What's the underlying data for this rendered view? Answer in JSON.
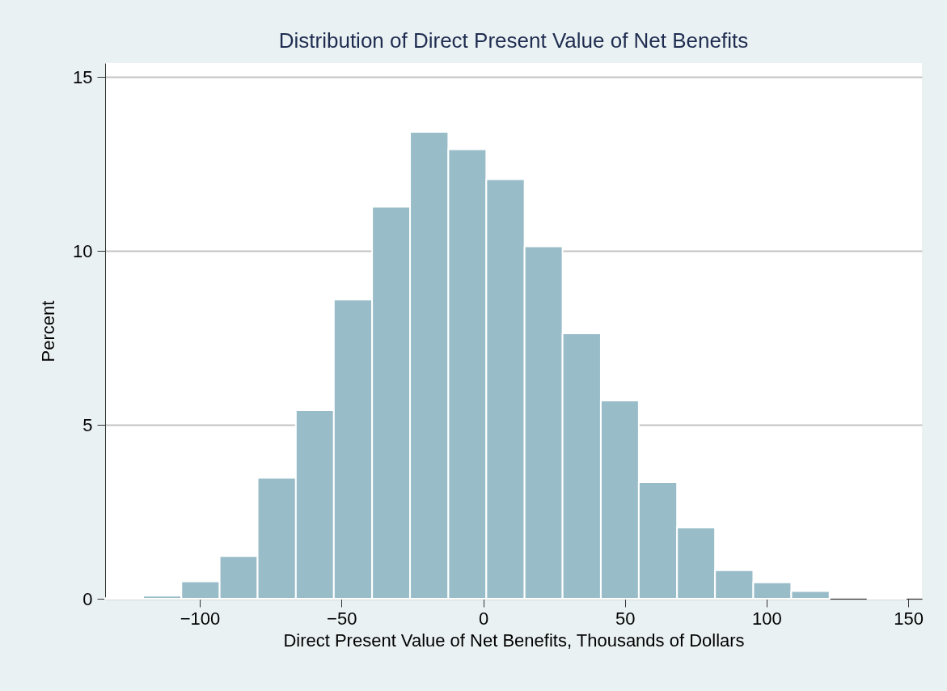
{
  "chart_data": {
    "type": "histogram",
    "title": "Distribution of Direct Present Value of Net Benefits",
    "xlabel": "Direct Present Value of Net Benefits, Thousands of Dollars",
    "ylabel": "Percent",
    "bins": [
      -133.4,
      -120,
      -106.5,
      -93,
      -79.6,
      -66.1,
      -52.7,
      -39.2,
      -25.8,
      -12.3,
      1.1,
      14.6,
      28,
      41.5,
      54.9,
      68.4,
      81.8,
      95.3,
      108.7,
      122.2,
      135.6,
      149.1
    ],
    "values": [
      0.02,
      0.09,
      0.5,
      1.23,
      3.48,
      5.42,
      8.6,
      11.27,
      13.42,
      12.92,
      12.06,
      10.13,
      7.63,
      5.7,
      3.35,
      2.05,
      0.82,
      0.47,
      0.22,
      0,
      0.02
    ],
    "color": "#98bcc8",
    "xlim": [
      -133.4,
      154.8
    ],
    "ylim": [
      0,
      15.4
    ],
    "xticks": [
      -100,
      -50,
      0,
      50,
      100,
      150
    ],
    "yticks": [
      0,
      5,
      10,
      15
    ],
    "grid": "y"
  }
}
